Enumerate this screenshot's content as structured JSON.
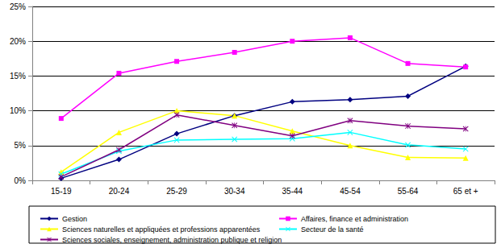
{
  "chart_data": {
    "type": "line",
    "categories": [
      "15-19",
      "20-24",
      "25-29",
      "30-34",
      "35-44",
      "45-54",
      "55-64",
      "65 et +"
    ],
    "series": [
      {
        "name": "Gestion",
        "color": "#000080",
        "marker": "diamond",
        "values": [
          0.3,
          3.0,
          6.7,
          9.3,
          11.3,
          11.6,
          12.1,
          16.4
        ]
      },
      {
        "name": "Affaires, finance et administration",
        "color": "#FF00FF",
        "marker": "square",
        "values": [
          8.9,
          15.4,
          17.1,
          18.4,
          20.0,
          20.5,
          16.8,
          16.3
        ]
      },
      {
        "name": "Sciences naturelles et appliquées et professions apparentées",
        "color": "#FFFF00",
        "marker": "triangle",
        "values": [
          1.2,
          6.9,
          10.0,
          9.3,
          7.1,
          5.0,
          3.3,
          3.2
        ]
      },
      {
        "name": "Secteur de la santé",
        "color": "#00FFFF",
        "marker": "x",
        "values": [
          0.9,
          4.2,
          5.8,
          5.9,
          6.0,
          6.9,
          5.1,
          4.5
        ]
      },
      {
        "name": "Sciences sociales, enseignement, administration publique et religion",
        "color": "#800080",
        "marker": "star",
        "values": [
          0.5,
          4.4,
          9.4,
          7.9,
          6.4,
          8.6,
          7.8,
          7.4
        ]
      }
    ],
    "ylim": [
      0,
      25
    ],
    "yticks": [
      {
        "value": 0,
        "label": "0%"
      },
      {
        "value": 5,
        "label": "5%"
      },
      {
        "value": 10,
        "label": "10%"
      },
      {
        "value": 15,
        "label": "15%"
      },
      {
        "value": 20,
        "label": "20%"
      },
      {
        "value": 25,
        "label": "25%"
      }
    ],
    "grid": true,
    "legend": "bottom"
  }
}
